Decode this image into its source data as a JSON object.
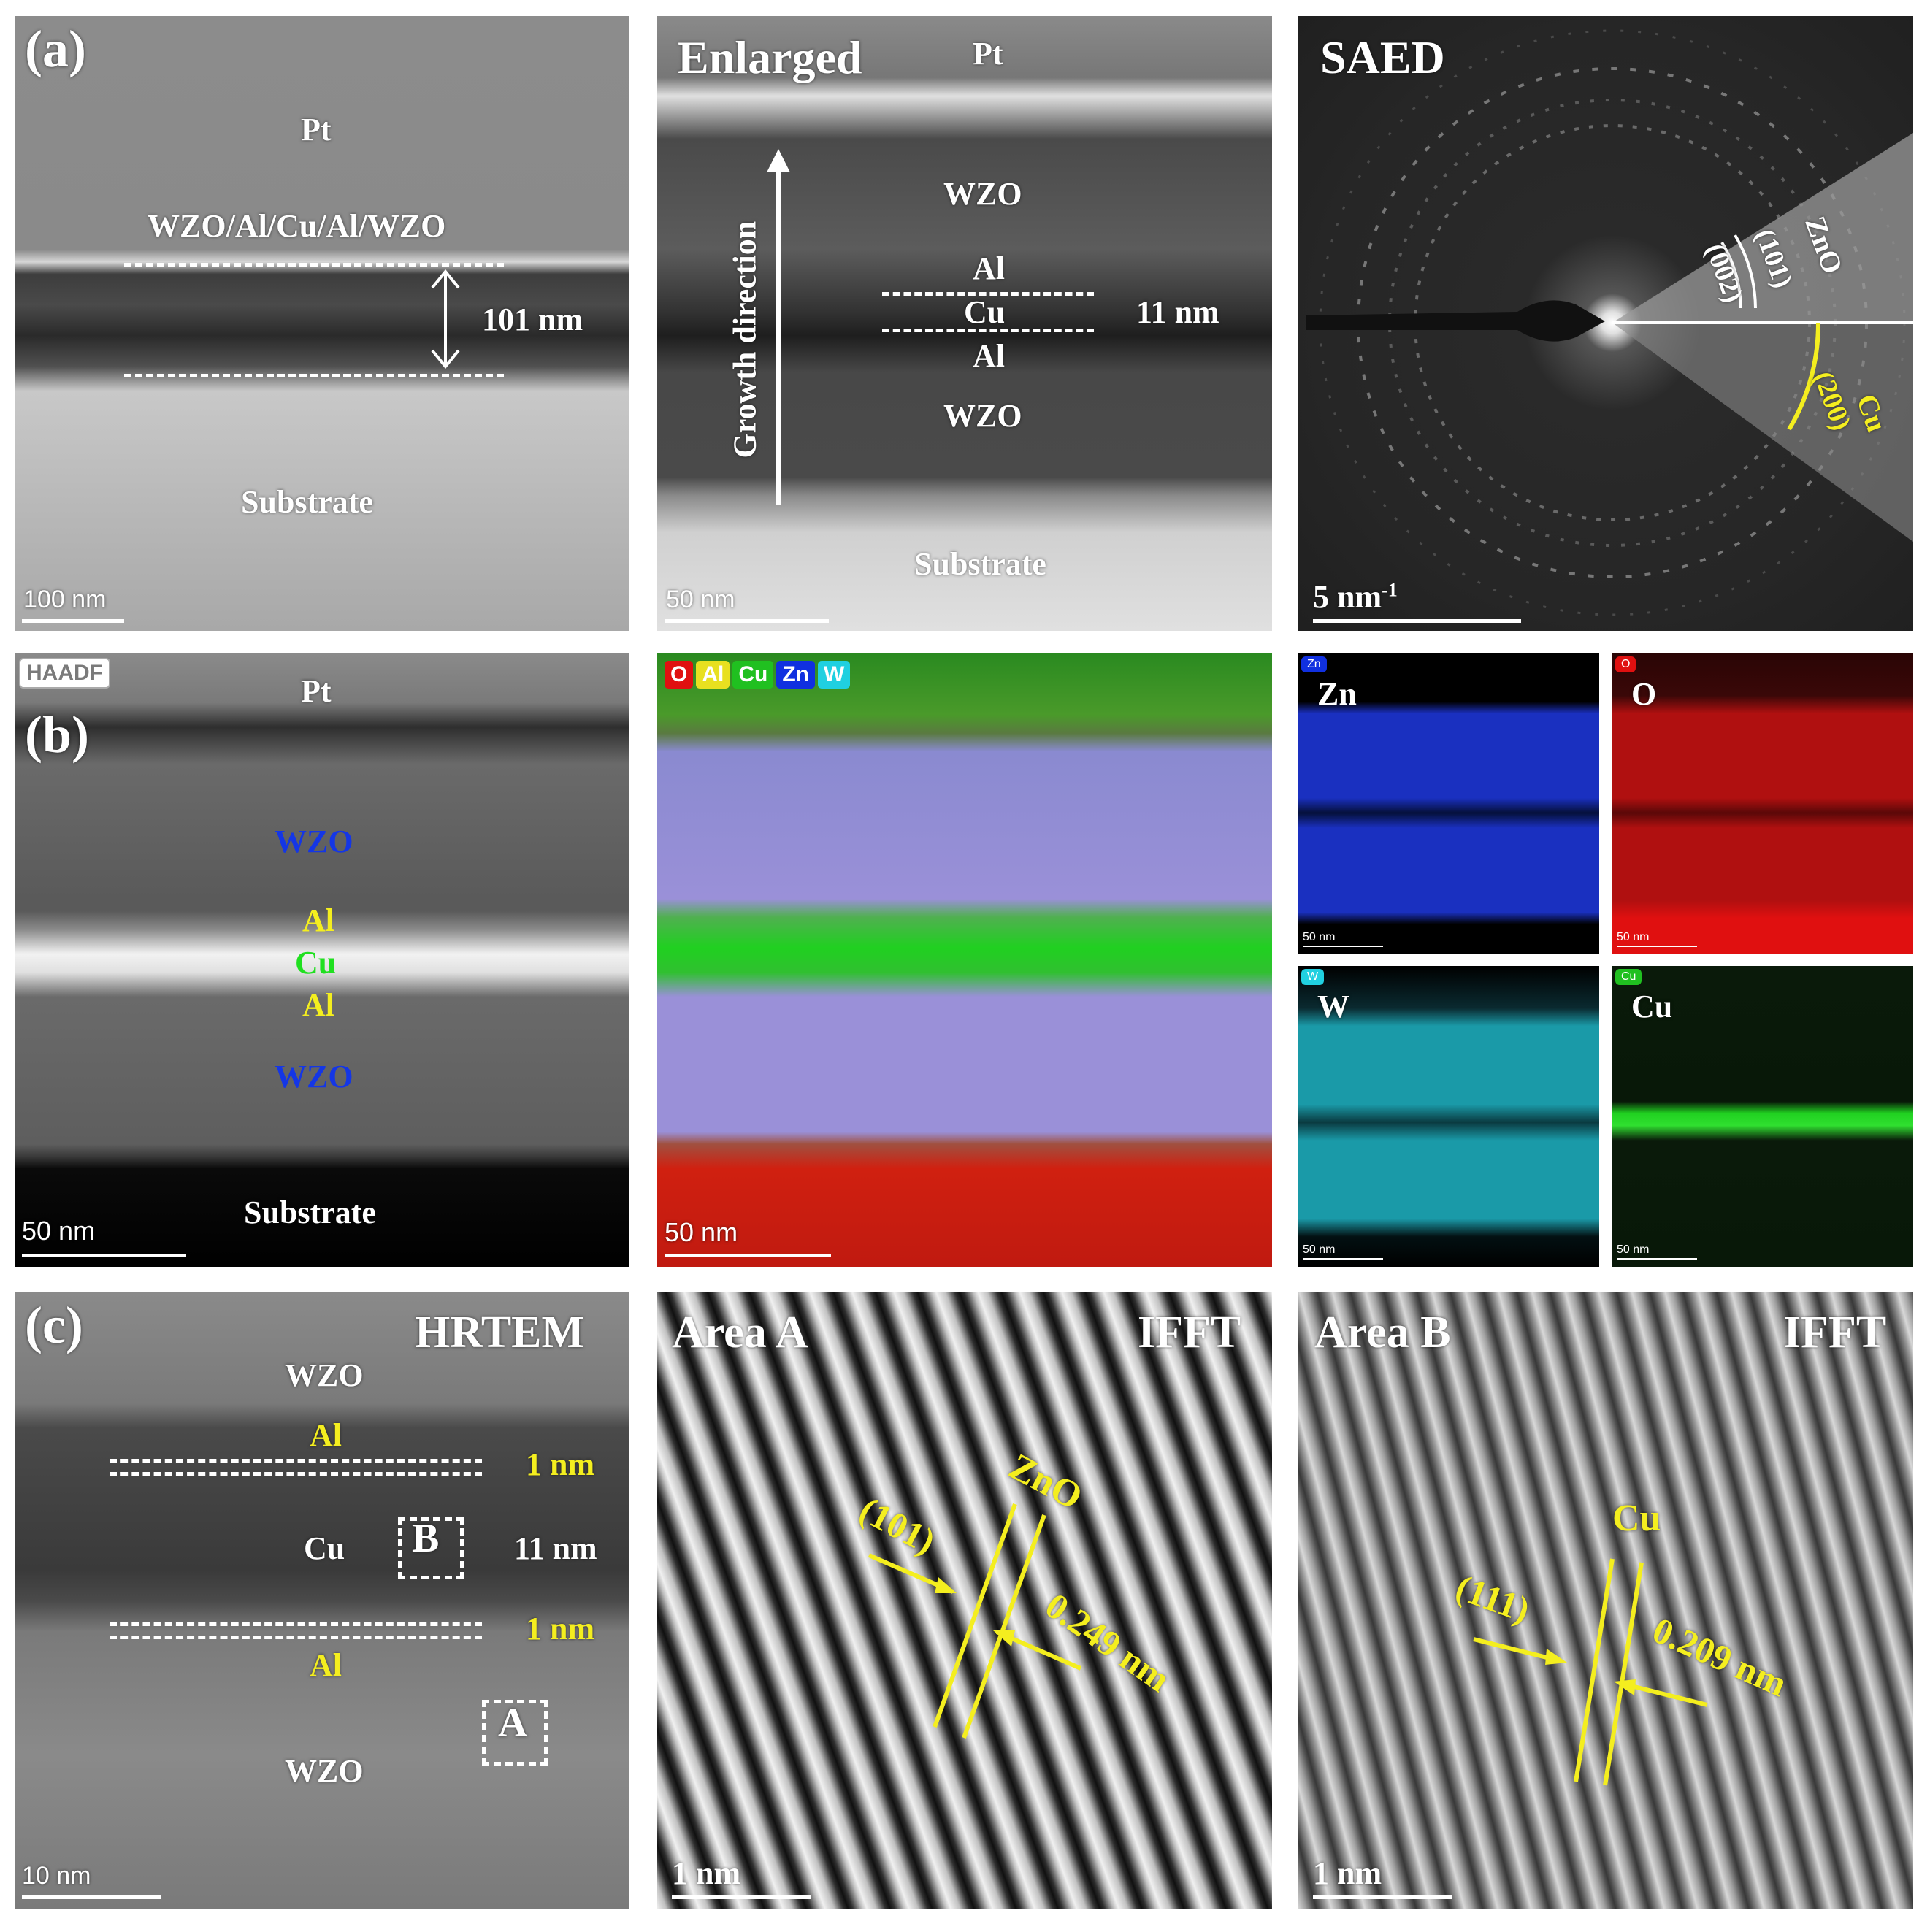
{
  "panel_a1": {
    "label": "(a)",
    "pt": "Pt",
    "stack": "WZO/Al/Cu/Al/WZO",
    "thickness": "101 nm",
    "substrate": "Substrate",
    "scale": "100 nm"
  },
  "panel_a2": {
    "title": "Enlarged",
    "pt": "Pt",
    "wzo_top": "WZO",
    "al_top": "Al",
    "cu": "Cu",
    "cu_thickness": "11 nm",
    "al_bottom": "Al",
    "wzo_bottom": "WZO",
    "growth": "Growth direction",
    "substrate": "Substrate",
    "scale": "50 nm"
  },
  "panel_a3": {
    "title": "SAED",
    "zno": "ZnO",
    "zno_101": "(101)",
    "zno_002": "(002)",
    "cu": "Cu",
    "cu_200": "(200)",
    "scale": "5 nm",
    "scale_sup": "-1"
  },
  "panel_b1": {
    "tag": "HAADF",
    "label": "(b)",
    "pt": "Pt",
    "wzo_top": "WZO",
    "al_top": "Al",
    "cu": "Cu",
    "al_bottom": "Al",
    "wzo_bottom": "WZO",
    "substrate": "Substrate",
    "scale": "50 nm"
  },
  "panel_b2": {
    "legend": [
      "O",
      "Al",
      "Cu",
      "Zn",
      "W"
    ],
    "scale": "50 nm"
  },
  "panel_b3": {
    "maps": [
      {
        "element": "Zn",
        "tag": "Zn",
        "scale": "50 nm"
      },
      {
        "element": "O",
        "tag": "O",
        "scale": "50 nm"
      },
      {
        "element": "W",
        "tag": "W",
        "scale": "50 nm"
      },
      {
        "element": "Cu",
        "tag": "Cu",
        "scale": "50 nm"
      }
    ]
  },
  "panel_c1": {
    "label": "(c)",
    "title": "HRTEM",
    "wzo_top": "WZO",
    "al_top": "Al",
    "gap_top": "1 nm",
    "cu": "Cu",
    "cu_thickness": "11 nm",
    "box_b": "B",
    "gap_bottom": "1 nm",
    "al_bottom": "Al",
    "box_a": "A",
    "wzo_bottom": "WZO",
    "scale": "10 nm"
  },
  "panel_c2": {
    "title": "Area A",
    "mode": "IFFT",
    "phase": "ZnO",
    "plane": "(101)",
    "spacing": "0.249 nm",
    "scale": "1 nm"
  },
  "panel_c3": {
    "title": "Area B",
    "mode": "IFFT",
    "phase": "Cu",
    "plane": "(111)",
    "spacing": "0.209 nm",
    "scale": "1 nm"
  },
  "colors": {
    "annotation_yellow": "#f4ee1f",
    "wzo_blue": "#1436e6",
    "cu_green": "#20e020",
    "o_red": "#e01010",
    "zn_blue": "#1030e0",
    "w_cyan": "#20d0e0"
  }
}
